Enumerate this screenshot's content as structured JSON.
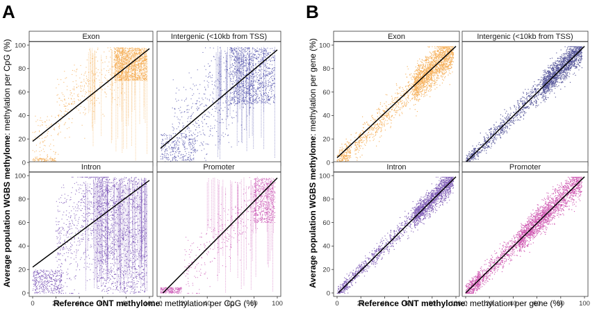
{
  "figure": {
    "panel_a_label": "A",
    "panel_b_label": "B",
    "panel_a_xlabel_bold": "Reference ONT methylome",
    "panel_a_xlabel_rest": ": methylation per CpG (%)",
    "panel_a_ylabel_bold": "Average population WGBS methylome",
    "panel_a_ylabel_rest": ": methylation per CpG (%)",
    "panel_b_xlabel_bold": "Reference ONT methylome",
    "panel_b_xlabel_rest": ": methylation per gene (%)",
    "panel_b_ylabel_bold": "Average population WGBS methylome",
    "panel_b_ylabel_rest": ": methylation per gene (%)",
    "ticks": [
      "0",
      "20",
      "40",
      "60",
      "80",
      "100"
    ]
  },
  "chart_data": [
    {
      "type": "scatter",
      "panel": "A",
      "facet": "Exon",
      "title": "Exon",
      "color": "#F39A2C",
      "granularity": "cpg",
      "xlim": [
        0,
        100
      ],
      "ylim": [
        0,
        100
      ],
      "fit_line": {
        "x": [
          0,
          100
        ],
        "y": [
          18,
          97
        ]
      },
      "point_cloud": {
        "center_x": 85,
        "center_y": 90
      }
    },
    {
      "type": "scatter",
      "panel": "A",
      "facet": "Intergenic (<10kb from TSS)",
      "title": "Intergenic (<10kb from TSS)",
      "color": "#2E2E9A",
      "granularity": "cpg",
      "xlim": [
        0,
        100
      ],
      "ylim": [
        0,
        100
      ],
      "fit_line": {
        "x": [
          0,
          100
        ],
        "y": [
          12,
          96
        ]
      },
      "point_cloud": {
        "center_x": 85,
        "center_y": 85
      }
    },
    {
      "type": "scatter",
      "panel": "A",
      "facet": "Intron",
      "title": "Intron",
      "color": "#5B2CA6",
      "granularity": "cpg",
      "xlim": [
        0,
        100
      ],
      "ylim": [
        0,
        100
      ],
      "fit_line": {
        "x": [
          0,
          100
        ],
        "y": [
          22,
          96
        ]
      },
      "point_cloud": {
        "center_x": 80,
        "center_y": 85
      }
    },
    {
      "type": "scatter",
      "panel": "A",
      "facet": "Promoter",
      "title": "Promoter",
      "color": "#C23BA8",
      "granularity": "cpg",
      "xlim": [
        0,
        100
      ],
      "ylim": [
        0,
        100
      ],
      "fit_line": {
        "x": [
          0,
          100
        ],
        "y": [
          -2,
          98
        ]
      },
      "point_cloud": {
        "center_x": 90,
        "center_y": 88
      }
    },
    {
      "type": "scatter",
      "panel": "B",
      "facet": "Exon",
      "title": "Exon",
      "color": "#F39A2C",
      "granularity": "gene",
      "xlim": [
        0,
        100
      ],
      "ylim": [
        0,
        100
      ],
      "fit_line": {
        "x": [
          0,
          100
        ],
        "y": [
          4,
          99
        ]
      },
      "point_cloud": {
        "center_x": 80,
        "center_y": 85
      }
    },
    {
      "type": "scatter",
      "panel": "B",
      "facet": "Intergenic (<10kb from TSS)",
      "title": "Intergenic (<10kb from TSS)",
      "color": "#22227A",
      "granularity": "gene",
      "xlim": [
        0,
        100
      ],
      "ylim": [
        0,
        100
      ],
      "fit_line": {
        "x": [
          0,
          100
        ],
        "y": [
          0,
          99
        ]
      },
      "point_cloud": {
        "center_x": 80,
        "center_y": 80
      }
    },
    {
      "type": "scatter",
      "panel": "B",
      "facet": "Intron",
      "title": "Intron",
      "color": "#5A2CA0",
      "granularity": "gene",
      "xlim": [
        0,
        100
      ],
      "ylim": [
        0,
        100
      ],
      "fit_line": {
        "x": [
          0,
          100
        ],
        "y": [
          -1,
          99
        ]
      },
      "point_cloud": {
        "center_x": 75,
        "center_y": 75
      }
    },
    {
      "type": "scatter",
      "panel": "B",
      "facet": "Promoter",
      "title": "Promoter",
      "color": "#C0269A",
      "granularity": "gene",
      "xlim": [
        0,
        100
      ],
      "ylim": [
        0,
        100
      ],
      "fit_line": {
        "x": [
          0,
          100
        ],
        "y": [
          0,
          99
        ]
      },
      "point_cloud": {
        "center_x": 60,
        "center_y": 60
      }
    }
  ]
}
